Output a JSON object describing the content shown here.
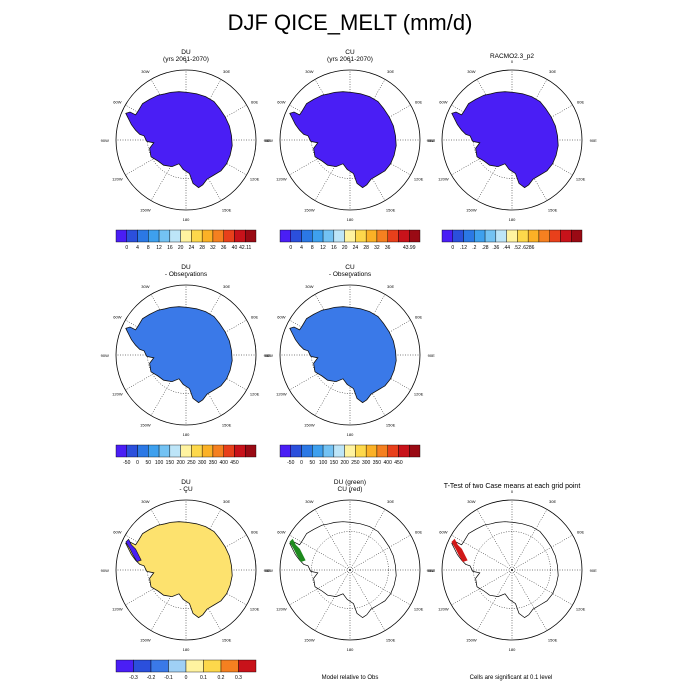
{
  "page_title": "DJF QICE_MELT (mm/d)",
  "colors": {
    "continent_blue": "#4a1ef5",
    "difference_blue": "#3a79e8",
    "difference_yellow": "#fde26e",
    "test_green": "#1e8a1e",
    "test_red": "#d01818",
    "coast_black": "#000000"
  },
  "notes": {
    "model_relative": "Model relative to Obs",
    "significance": "Cells are significant at 0.1 level"
  },
  "chart_data": [
    {
      "type": "map",
      "id": "du",
      "title_lines": [
        "DU",
        "(yrs 2061-2070)"
      ],
      "fill": "#4a1ef5",
      "colorbar": {
        "labels": [
          "0",
          "4",
          "8",
          "12",
          "16",
          "20",
          "24",
          "28",
          "32",
          "36",
          "40",
          "42.11"
        ],
        "colors": [
          "#4a1ef5",
          "#2b4fdc",
          "#2b78e5",
          "#3ea0ee",
          "#73c2f3",
          "#bde5f8",
          "#fff3a0",
          "#fdd84b",
          "#fbb126",
          "#f58020",
          "#e8401b",
          "#c8121a",
          "#9a0a14"
        ]
      }
    },
    {
      "type": "map",
      "id": "cu",
      "title_lines": [
        "CU",
        "(yrs 2061-2070)"
      ],
      "fill": "#4a1ef5",
      "colorbar": {
        "labels": [
          "0",
          "4",
          "8",
          "12",
          "16",
          "20",
          "24",
          "28",
          "32",
          "36",
          "",
          "43.99"
        ],
        "colors": [
          "#4a1ef5",
          "#2b4fdc",
          "#2b78e5",
          "#3ea0ee",
          "#73c2f3",
          "#bde5f8",
          "#fff3a0",
          "#fdd84b",
          "#fbb126",
          "#f58020",
          "#e8401b",
          "#c8121a",
          "#9a0a14"
        ]
      }
    },
    {
      "type": "map",
      "id": "obs",
      "title_lines": [
        "RACMO2.3_p2"
      ],
      "fill": "#4a1ef5",
      "colorbar": {
        "labels": [
          "0",
          ".12",
          ".2",
          ".28",
          ".36",
          ".44",
          ".52",
          ".6286"
        ],
        "colors": [
          "#4a1ef5",
          "#2b4fdc",
          "#2b78e5",
          "#3ea0ee",
          "#73c2f3",
          "#bde5f8",
          "#fff3a0",
          "#fdd84b",
          "#fbb126",
          "#f58020",
          "#e8401b",
          "#c8121a",
          "#9a0a14"
        ]
      }
    },
    {
      "type": "map",
      "id": "du_obs",
      "title_lines": [
        "DU",
        "- Observations"
      ],
      "fill": "#3a79e8",
      "colorbar": {
        "labels": [
          "-50",
          "0",
          "50",
          "100",
          "150",
          "200",
          "250",
          "300",
          "350",
          "400",
          "450"
        ],
        "colors": [
          "#4a1ef5",
          "#2b4fdc",
          "#2b78e5",
          "#3ea0ee",
          "#73c2f3",
          "#bde5f8",
          "#fff3a0",
          "#fdd84b",
          "#fbb126",
          "#f58020",
          "#e8401b",
          "#c8121a",
          "#9a0a14"
        ]
      }
    },
    {
      "type": "map",
      "id": "cu_obs",
      "title_lines": [
        "CU",
        "- Observations"
      ],
      "fill": "#3a79e8",
      "colorbar": {
        "labels": [
          "-50",
          "0",
          "50",
          "100",
          "150",
          "200",
          "250",
          "300",
          "350",
          "400",
          "450"
        ],
        "colors": [
          "#4a1ef5",
          "#2b4fdc",
          "#2b78e5",
          "#3ea0ee",
          "#73c2f3",
          "#bde5f8",
          "#fff3a0",
          "#fdd84b",
          "#fbb126",
          "#f58020",
          "#e8401b",
          "#c8121a",
          "#9a0a14"
        ]
      }
    },
    {
      "type": "map",
      "id": "du_cu",
      "title_lines": [
        "DU",
        "- CU"
      ],
      "fill": "#fde26e",
      "colorbar": {
        "labels": [
          "-0.3",
          "-0.2",
          "-0.1",
          "0",
          "0.1",
          "0.2",
          "0.3"
        ],
        "colors": [
          "#4a1ef5",
          "#2b4fdc",
          "#3a79e8",
          "#9fd0f5",
          "#fff3a0",
          "#fdd84b",
          "#f58020",
          "#c8121a"
        ]
      }
    },
    {
      "type": "map",
      "id": "du_cu_model",
      "title_lines": [
        "DU (green)",
        "CU (red)"
      ],
      "fill": "none"
    },
    {
      "type": "map",
      "id": "ttest",
      "title_lines": [
        "T-Test of two Case means at each grid point"
      ],
      "fill": "none"
    }
  ],
  "map_labels": {
    "top": "0",
    "bottom": "180",
    "left": "90W",
    "right": "90E",
    "nw_upper": "30W",
    "nw_lower": "60W",
    "ne_upper": "30E",
    "ne_lower": "60E",
    "sw_upper": "120W",
    "sw_lower": "150W",
    "se_upper": "120E",
    "se_lower": "150E"
  }
}
